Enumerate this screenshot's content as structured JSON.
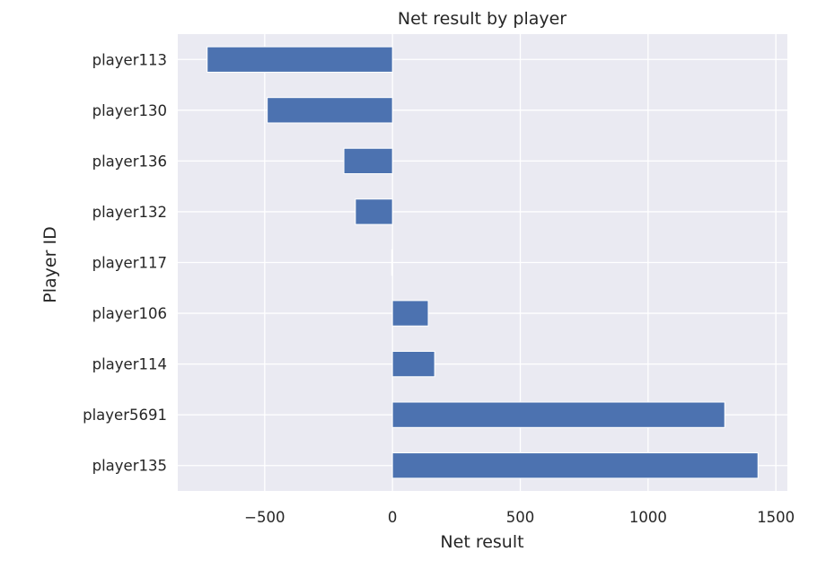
{
  "chart_data": {
    "type": "bar",
    "orientation": "horizontal",
    "title": "Net result by player",
    "xlabel": "Net result",
    "ylabel": "Player ID",
    "categories": [
      "player113",
      "player130",
      "player136",
      "player132",
      "player117",
      "player106",
      "player114",
      "player5691",
      "player135"
    ],
    "values": [
      -725,
      -490,
      -190,
      -145,
      -3,
      140,
      165,
      1300,
      1430
    ],
    "xlim": [
      -840,
      1545
    ],
    "xticks": [
      -500,
      0,
      500,
      1000,
      1500
    ],
    "xtick_labels": [
      "−500",
      "0",
      "500",
      "1000",
      "1500"
    ],
    "grid": true,
    "colors": {
      "bar": "#4c72b0",
      "plot_background": "#eaeaf2",
      "grid": "#ffffff",
      "text": "#262626"
    }
  }
}
